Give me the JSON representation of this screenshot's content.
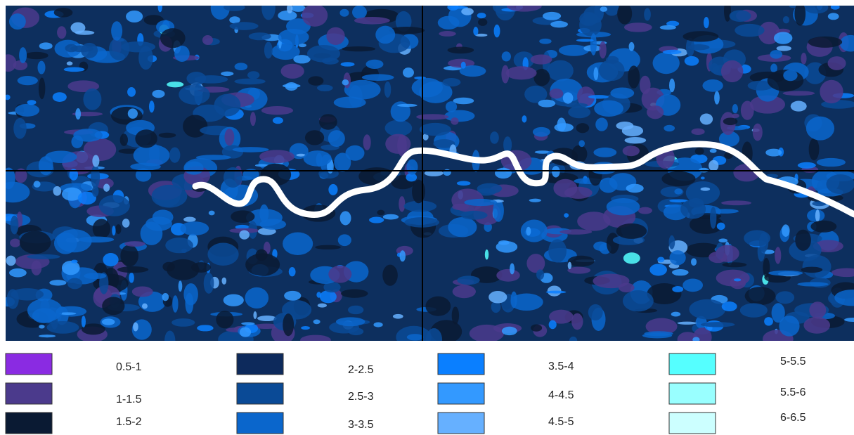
{
  "legend": {
    "items": [
      {
        "label": "0.5-1",
        "color": "#8a2be2"
      },
      {
        "label": "1-1.5",
        "color": "#4b3a8c"
      },
      {
        "label": "1.5-2",
        "color": "#0a1a33"
      },
      {
        "label": "2-2.5",
        "color": "#0d2a5c"
      },
      {
        "label": "2.5-3",
        "color": "#0a4a96"
      },
      {
        "label": "3-3.5",
        "color": "#0a66cc"
      },
      {
        "label": "3.5-4",
        "color": "#0a7fff"
      },
      {
        "label": "4-4.5",
        "color": "#3399ff"
      },
      {
        "label": "4.5-5",
        "color": "#66b0ff"
      },
      {
        "label": "5-5.5",
        "color": "#55ffff"
      },
      {
        "label": "5.5-6",
        "color": "#99ffff"
      },
      {
        "label": "6-6.5",
        "color": "#ccffff"
      }
    ]
  }
}
